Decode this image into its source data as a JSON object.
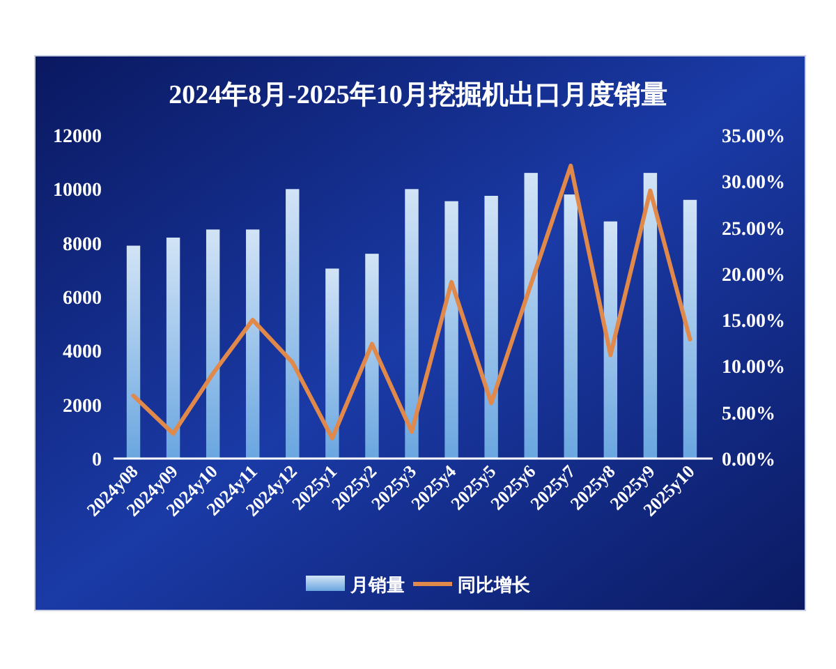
{
  "chart_data": {
    "type": "bar",
    "title": "2024年8月-2025年10月挖掘机出口月度销量",
    "categories": [
      "2024y08",
      "2024y09",
      "2024y10",
      "2024y11",
      "2024y12",
      "2025y1",
      "2025y2",
      "2025y3",
      "2025y4",
      "2025y5",
      "2025y6",
      "2025y7",
      "2025y8",
      "2025y9",
      "2025y10"
    ],
    "series": [
      {
        "name": "月销量",
        "color": "#6aa6e0",
        "values": [
          7900,
          8200,
          8500,
          8500,
          10000,
          7050,
          7600,
          10000,
          9550,
          9750,
          10600,
          9800,
          8800,
          10600,
          9600
        ]
      },
      {
        "name": "同比增长",
        "type": "line",
        "axis": "y2",
        "color": "#e0894a",
        "values": [
          6.8,
          2.7,
          9.2,
          15.0,
          10.4,
          2.2,
          12.4,
          2.9,
          19.1,
          6.0,
          18.9,
          31.7,
          11.2,
          29.0,
          12.9
        ]
      }
    ],
    "ylim": [
      0,
      12000
    ],
    "yticks": [
      0,
      2000,
      4000,
      6000,
      8000,
      10000,
      12000
    ],
    "y2lim": [
      0,
      35
    ],
    "y2ticks": [
      {
        "value": 0,
        "label": "0.00%"
      },
      {
        "value": 5,
        "label": "5.00%"
      },
      {
        "value": 10,
        "label": "10.00%"
      },
      {
        "value": 15,
        "label": "15.00%"
      },
      {
        "value": 20,
        "label": "20.00%"
      },
      {
        "value": 25,
        "label": "25.00%"
      },
      {
        "value": 30,
        "label": "30.00%"
      },
      {
        "value": 35,
        "label": "35.00%"
      }
    ],
    "grid": false,
    "legend": "bottom"
  }
}
